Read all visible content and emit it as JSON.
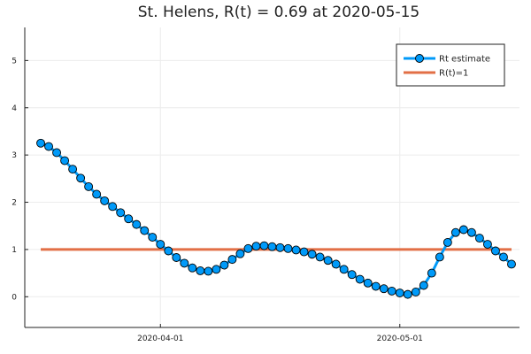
{
  "chart_data": {
    "type": "line",
    "title": "St. Helens, R(t) = 0.69 at 2020-05-15",
    "xlabel": "",
    "ylabel": "",
    "x_start": "2020-03-17",
    "x_end": "2020-05-15",
    "xlim": [
      "2020-03-15",
      "2020-05-16"
    ],
    "ylim": [
      -0.65,
      5.7
    ],
    "xticks": [
      {
        "value": "2020-04-01",
        "label": "2020-04-01"
      },
      {
        "value": "2020-05-01",
        "label": "2020-05-01"
      }
    ],
    "yticks": [
      0,
      1,
      2,
      3,
      4,
      5
    ],
    "grid": true,
    "legend_position": "top-right",
    "series": [
      {
        "name": "Rt estimate",
        "color": "#009AF9",
        "marker": "circle",
        "values": [
          3.25,
          3.18,
          3.05,
          2.88,
          2.7,
          2.51,
          2.33,
          2.17,
          2.03,
          1.91,
          1.78,
          1.65,
          1.53,
          1.4,
          1.26,
          1.11,
          0.97,
          0.83,
          0.71,
          0.61,
          0.55,
          0.54,
          0.58,
          0.67,
          0.79,
          0.91,
          1.02,
          1.07,
          1.08,
          1.06,
          1.04,
          1.02,
          0.99,
          0.95,
          0.9,
          0.84,
          0.77,
          0.69,
          0.58,
          0.47,
          0.37,
          0.29,
          0.22,
          0.17,
          0.12,
          0.08,
          0.05,
          0.1,
          0.24,
          0.5,
          0.84,
          1.15,
          1.36,
          1.42,
          1.36,
          1.24,
          1.11,
          0.97,
          0.84,
          0.69
        ]
      },
      {
        "name": "R(t)=1",
        "color": "#E26F46",
        "marker": "none",
        "start": "2020-03-17",
        "end": "2020-05-15",
        "value": 1
      }
    ]
  }
}
